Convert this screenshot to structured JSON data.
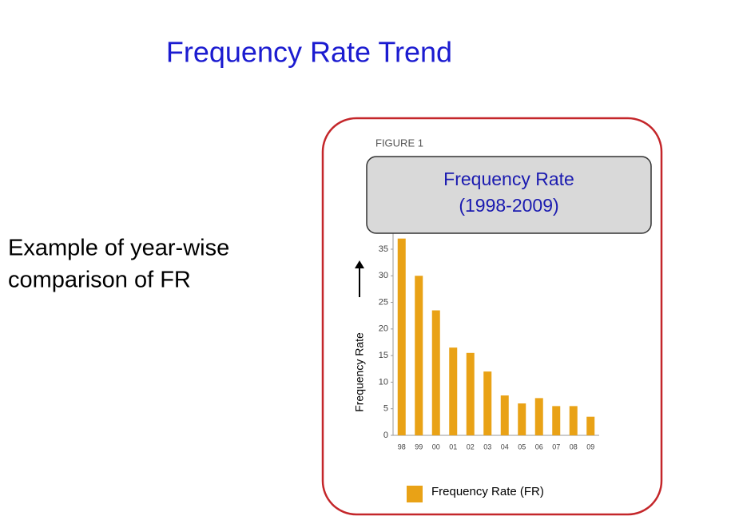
{
  "slide": {
    "title": "Frequency Rate Trend",
    "text_lines": [
      "Example of year-wise",
      "comparison of FR"
    ]
  },
  "chart_data": {
    "type": "bar",
    "figure_label": "FIGURE 1",
    "title": "Frequency Rate",
    "subtitle": "(1998-2009)",
    "y_label": "Frequency Rate",
    "categories": [
      "98",
      "99",
      "00",
      "01",
      "02",
      "03",
      "04",
      "05",
      "06",
      "07",
      "08",
      "09"
    ],
    "series": [
      {
        "name": "Frequency Rate (FR)",
        "color": "#e9a216",
        "values": [
          37,
          30,
          23.5,
          16.5,
          15.5,
          12,
          7.5,
          6,
          7,
          5.5,
          5.5,
          3.5
        ]
      }
    ],
    "ylim": [
      0,
      38
    ],
    "yticks": [
      0,
      5,
      10,
      15,
      20,
      25,
      30,
      35
    ],
    "legend": "bottom",
    "grid": false
  }
}
